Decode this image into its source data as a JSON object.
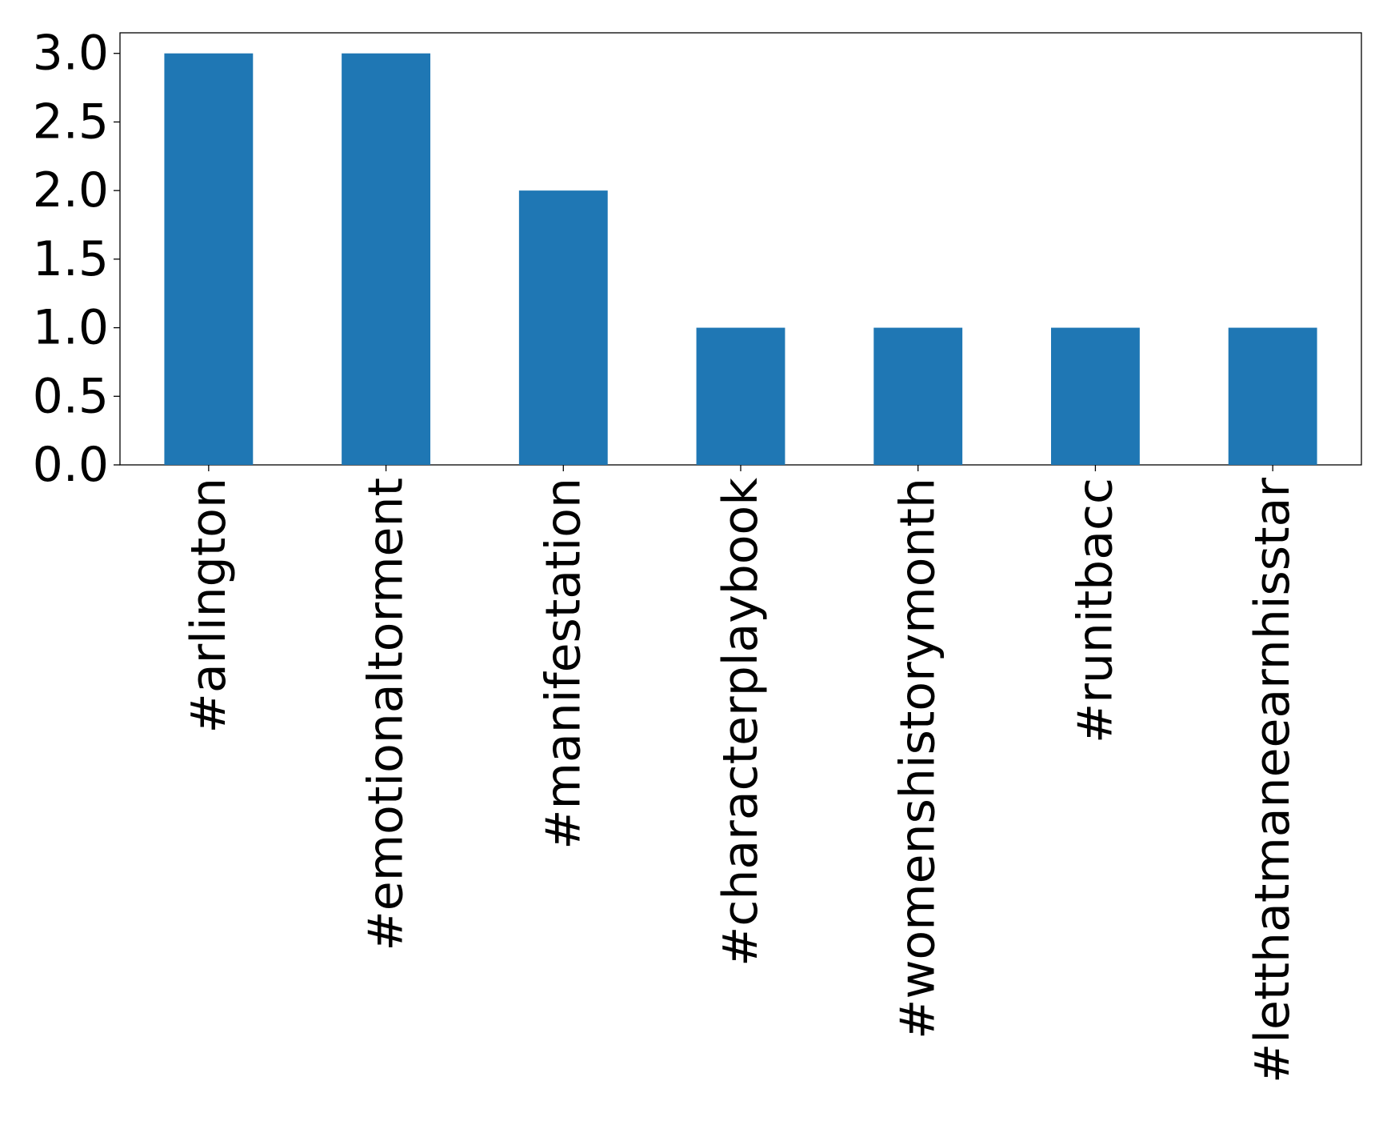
{
  "chart_data": {
    "type": "bar",
    "categories": [
      "#arlington",
      "#emotionaltorment",
      "#manifestation",
      "#characterplaybook",
      "#womenshistorymonth",
      "#runitbacc",
      "#letthatmaneearnhisstar"
    ],
    "values": [
      3,
      3,
      2,
      1,
      1,
      1,
      1
    ],
    "ylim": [
      0,
      3.15
    ],
    "yticks": [
      "0.0",
      "0.5",
      "1.0",
      "1.5",
      "2.0",
      "2.5",
      "3.0"
    ],
    "title": "",
    "xlabel": "",
    "ylabel": "",
    "grid": false,
    "bar_color": "#1f77b4"
  }
}
